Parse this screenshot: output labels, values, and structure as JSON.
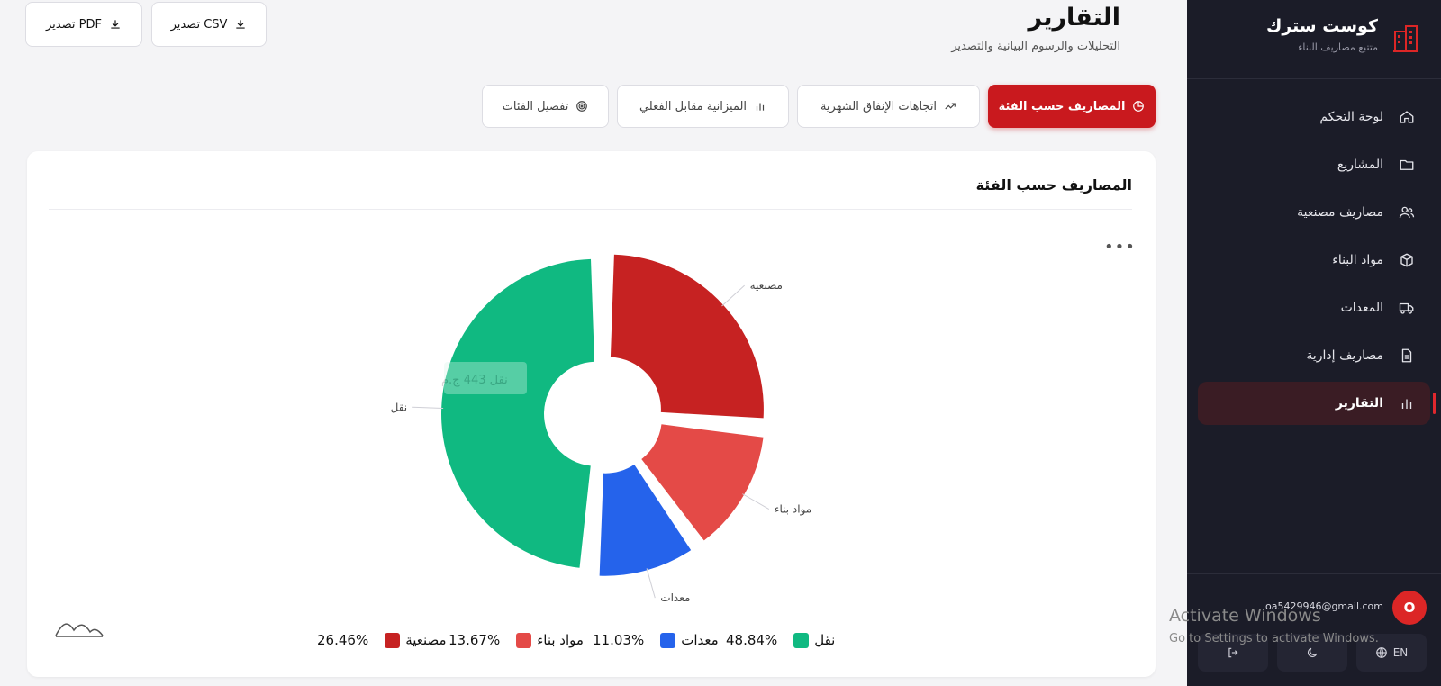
{
  "brand": {
    "title": "كوست سترك",
    "subtitle": "متتبع مصاريف البناء"
  },
  "nav": [
    {
      "label": "لوحة التحكم",
      "icon": "home-icon"
    },
    {
      "label": "المشاريع",
      "icon": "folder-icon"
    },
    {
      "label": "مصاريف مصنعية",
      "icon": "users-icon"
    },
    {
      "label": "مواد البناء",
      "icon": "box-icon"
    },
    {
      "label": "المعدات",
      "icon": "truck-icon"
    },
    {
      "label": "مصاريف إدارية",
      "icon": "document-icon"
    },
    {
      "label": "التقارير",
      "icon": "bar-chart-icon",
      "active": true
    }
  ],
  "user": {
    "avatar_letter": "O",
    "email": "oa5429946@gmail.com"
  },
  "footer": {
    "language": "EN"
  },
  "header": {
    "title": "التقارير",
    "subtitle": "التحليلات والرسوم البيانية والتصدير"
  },
  "export": {
    "pdf": "تصدير PDF",
    "csv": "تصدير CSV"
  },
  "tabs": [
    {
      "label": "المصاريف حسب الفئة",
      "icon": "pie-icon",
      "active": true
    },
    {
      "label": "اتجاهات الإنفاق الشهرية",
      "icon": "trend-icon"
    },
    {
      "label": "الميزانية مقابل الفعلي",
      "icon": "bars-icon"
    },
    {
      "label": "تفصيل الفئات",
      "icon": "target-icon"
    }
  ],
  "card": {
    "title": "المصاريف حسب الفئة",
    "more": "•••"
  },
  "chart_data": {
    "type": "pie",
    "title": "",
    "categories": [
      "مصنعية",
      "مواد بناء",
      "معدات",
      "نقل"
    ],
    "values": [
      26.46,
      13.67,
      11.03,
      48.84
    ],
    "colors": [
      "#c62222",
      "#e44a47",
      "#2563eb",
      "#10b981"
    ],
    "tooltip": {
      "label": "نقل",
      "value": "443 ج.م"
    },
    "legend": [
      {
        "name": "مصنعية",
        "percent": "26.46%"
      },
      {
        "name": "مواد بناء",
        "percent": "13.67%"
      },
      {
        "name": "معدات",
        "percent": "11.03%"
      },
      {
        "name": "نقل",
        "percent": "48.84%"
      }
    ]
  },
  "watermark": {
    "line1": "Activate Windows",
    "line2": "Go to Settings to activate Windows."
  }
}
